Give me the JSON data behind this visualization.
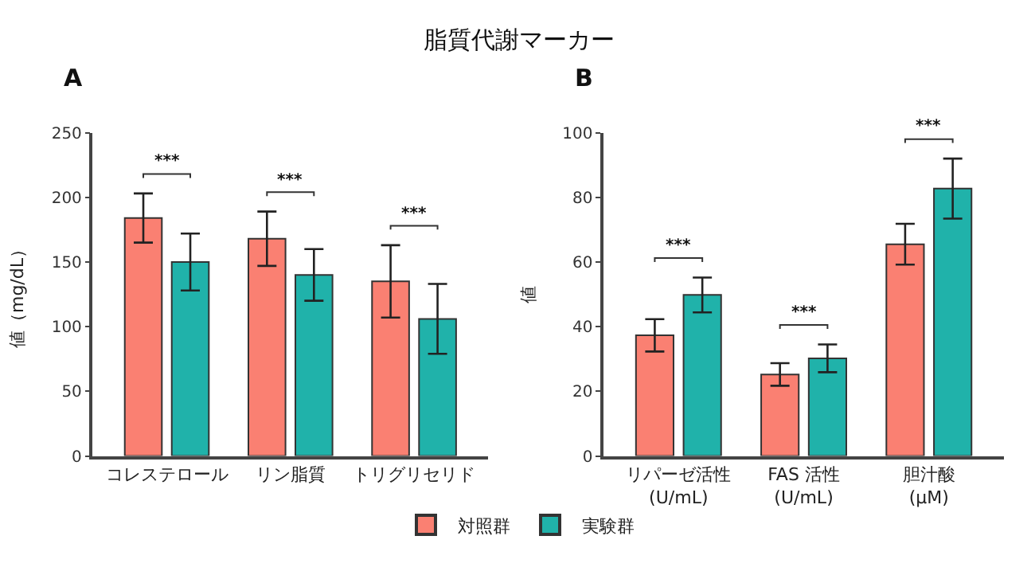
{
  "chart_data": [
    {
      "type": "bar",
      "title": "脂質代謝マーカー",
      "ylabel": "値（mg/dL）",
      "categories": [
        "コレステロール",
        "リン脂質",
        "トリグリセリド"
      ],
      "series": [
        {
          "name": "対照群",
          "color": "#fa8072",
          "values": [
            184,
            168,
            135
          ],
          "errors": [
            19,
            21,
            28
          ]
        },
        {
          "name": "実験群",
          "color": "#20b2aa",
          "values": [
            150,
            140,
            106
          ],
          "errors": [
            22,
            20,
            27
          ]
        }
      ],
      "ylim": [
        0,
        250
      ],
      "yticks": [
        0,
        50,
        100,
        150,
        200,
        250
      ],
      "legend": "bottom",
      "annotations": [
        "A",
        "***",
        "***",
        "***"
      ]
    },
    {
      "type": "bar",
      "ylabel": "値",
      "categories": [
        "リパーゼ活性\n(U/mL)",
        "FAS 活性\n(U/mL)",
        "胆汁酸\n(μM)"
      ],
      "series": [
        {
          "color": "#fa8072",
          "values": [
            37.3,
            25.2,
            65.5
          ],
          "errors": [
            5,
            3.5,
            6.3
          ]
        },
        {
          "color": "#20b2aa",
          "values": [
            49.8,
            30.2,
            82.7
          ],
          "errors": [
            5.4,
            4.3,
            9.3
          ]
        }
      ],
      "ylim": [
        0,
        100
      ],
      "yticks": [
        0,
        20,
        40,
        60,
        80,
        100
      ],
      "annotations": [
        "B",
        "***",
        "***",
        "***"
      ]
    }
  ]
}
